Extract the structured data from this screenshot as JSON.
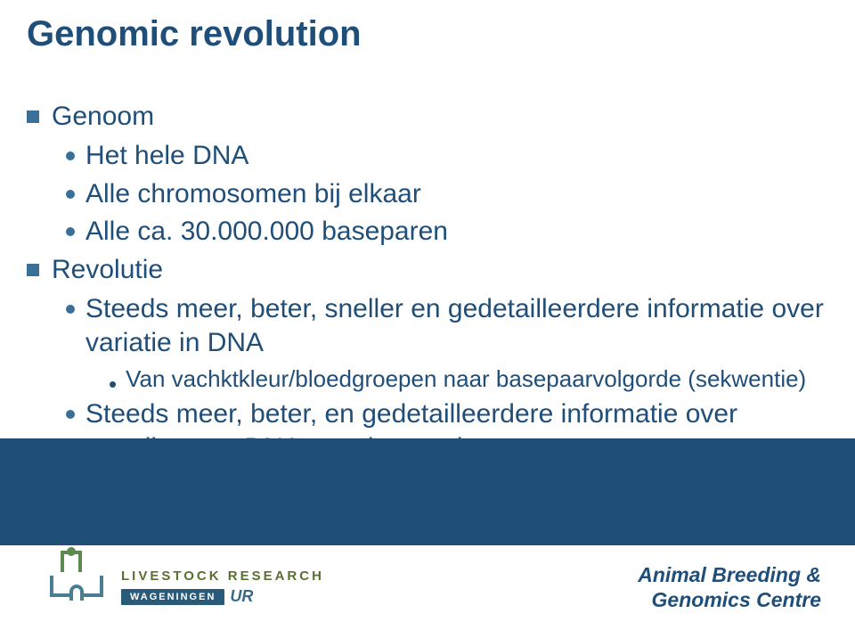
{
  "colors": {
    "title_color": "#1f4e79",
    "text_color": "#1f4e79",
    "bullet_color": "#3a6f97",
    "band_color": "#1f4e79",
    "org_top_color": "#5a7030",
    "org_bottom_color": "#3a6a88",
    "footer_right_color": "#1f4e79",
    "background": "#ffffff"
  },
  "typography": {
    "title_fontsize": 40,
    "body_fontsize": 30,
    "sub_bullet_fontsize": 26,
    "footer_right_fontsize": 23
  },
  "title": "Genomic revolution",
  "content": {
    "item1": {
      "label": "Genoom",
      "sub1": "Het hele DNA",
      "sub2": "Alle chromosomen bij elkaar",
      "sub3": "Alle ca. 30.000.000 baseparen"
    },
    "item2": {
      "label": "Revolutie",
      "sub1": "Steeds meer, beter, sneller en gedetailleerdere informatie over variatie in DNA",
      "sub1_dash1": "Van vachktkleur/bloedgroepen naar basepaarvolgorde (sekwentie)",
      "sub2": "Steeds meer, beter, en gedetailleerdere informatie over vertaling van DNA naar kenmerk"
    }
  },
  "footer": {
    "org_top": "LIVESTOCK RESEARCH",
    "wag": "WAGENINGEN",
    "ur": "UR",
    "right_line1": "Animal Breeding &",
    "right_line2": "Genomics Centre"
  }
}
